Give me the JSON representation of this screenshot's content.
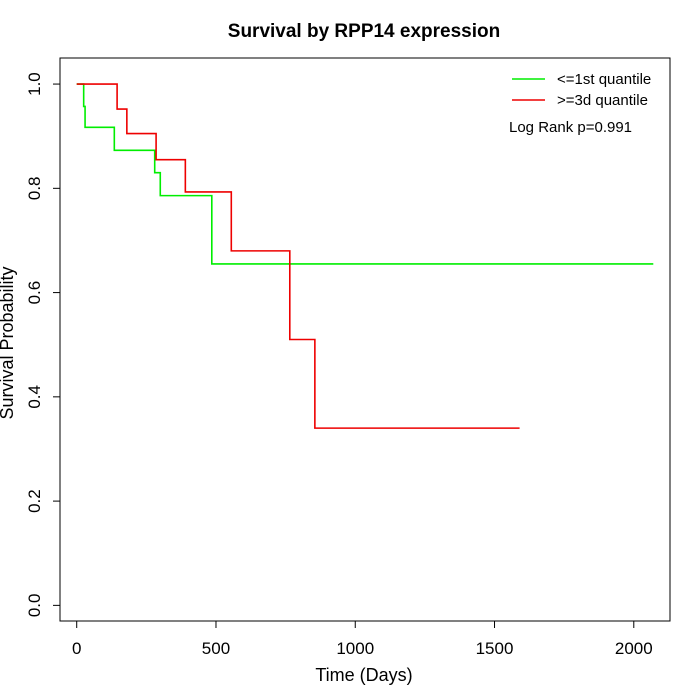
{
  "chart_data": {
    "type": "line",
    "step": true,
    "title": "Survival by RPP14 expression",
    "xlabel": "Time (Days)",
    "ylabel": "Survival Probability",
    "xlim": [
      -60,
      2130
    ],
    "ylim": [
      -0.03,
      1.05
    ],
    "xticks": [
      0,
      500,
      1000,
      1500,
      2000
    ],
    "yticks": [
      0.0,
      0.2,
      0.4,
      0.6,
      0.8,
      1.0
    ],
    "ytick_labels": [
      "0.0",
      "0.2",
      "0.4",
      "0.6",
      "0.8",
      "1.0"
    ],
    "legend_position": "top-right",
    "annotation": "Log Rank p=0.991",
    "series": [
      {
        "name": "<=1st quantile",
        "color": "#00ee00",
        "x": [
          0,
          25,
          30,
          135,
          280,
          300,
          485,
          2070
        ],
        "y": [
          1.0,
          0.957,
          0.917,
          0.873,
          0.83,
          0.786,
          0.655,
          0.655
        ]
      },
      {
        "name": ">=3d quantile",
        "color": "#ee0000",
        "x": [
          0,
          145,
          180,
          285,
          390,
          555,
          765,
          855,
          1590
        ],
        "y": [
          1.0,
          0.952,
          0.905,
          0.855,
          0.793,
          0.68,
          0.51,
          0.34,
          0.34
        ]
      }
    ]
  }
}
